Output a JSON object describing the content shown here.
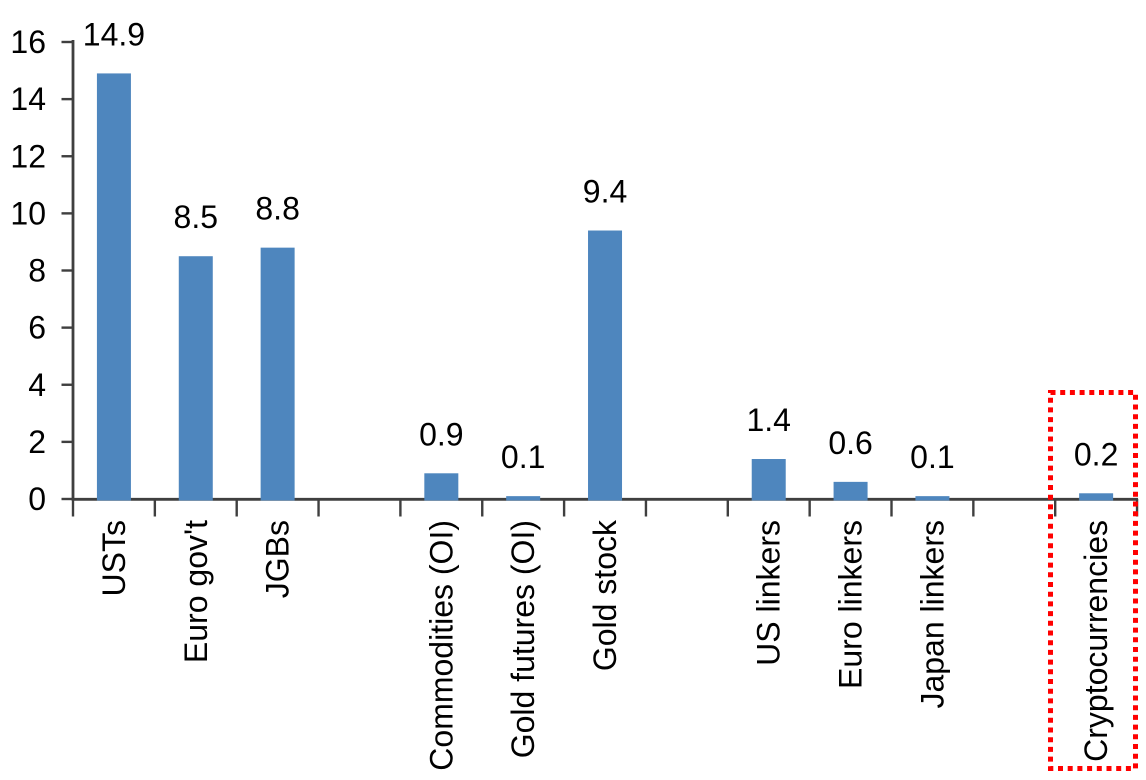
{
  "page": {
    "background_color": "#FFFFFF"
  },
  "chart_data": {
    "type": "bar",
    "title": "",
    "xlabel": "",
    "ylabel": "",
    "categories": [
      "USTs",
      "Euro gov't",
      "JGBs",
      "",
      "Commodities (OI)",
      "Gold futures (OI)",
      "Gold stock",
      "",
      "US linkers",
      "Euro linkers",
      "Japan linkers",
      "",
      "Cryptocurrencies"
    ],
    "values": [
      14.9,
      8.5,
      8.8,
      null,
      0.9,
      0.1,
      9.4,
      null,
      1.4,
      0.6,
      0.1,
      null,
      0.2
    ],
    "data_labels": [
      "14.9",
      "8.5",
      "8.8",
      "",
      "0.9",
      "0.1",
      "9.4",
      "",
      "1.4",
      "0.6",
      "0.1",
      "",
      "0.2"
    ],
    "ylim": [
      0,
      16
    ],
    "yticks": [
      0,
      2,
      4,
      6,
      8,
      10,
      12,
      14,
      16
    ],
    "grid": false,
    "legend": null,
    "value_labels_visible": true,
    "category_label_rotation_deg": -90,
    "bar_color": "#4E86BE",
    "axis_color": "#3F3F3F",
    "text_color": "#000000",
    "highlight": {
      "category": "Cryptocurrencies",
      "shape": "dotted-rectangle",
      "color": "#FF0000"
    }
  }
}
